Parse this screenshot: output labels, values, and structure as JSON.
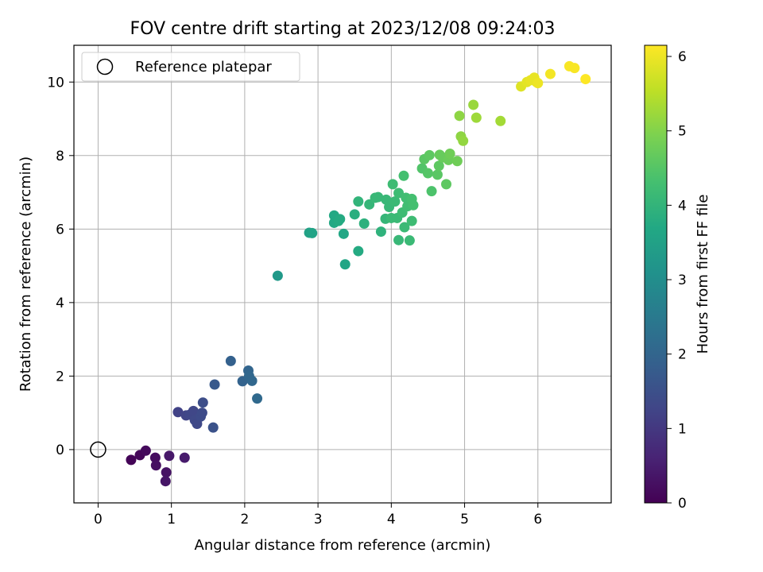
{
  "chart_data": {
    "type": "scatter",
    "title": "FOV centre drift starting at 2023/12/08 09:24:03",
    "xlabel": "Angular distance from reference (arcmin)",
    "ylabel": "Rotation from reference (arcmin)",
    "xlim": [
      -0.33,
      7.0
    ],
    "ylim": [
      -1.45,
      11.0
    ],
    "xticks": [
      0,
      1,
      2,
      3,
      4,
      5,
      6
    ],
    "yticks": [
      0,
      2,
      4,
      6,
      8,
      10
    ],
    "grid": true,
    "legend": {
      "position": "top-left",
      "label": "Reference platepar"
    },
    "reference_point": {
      "x": 0,
      "y": 0
    },
    "colorbar": {
      "label": "Hours from first FF file",
      "colormap": "viridis",
      "range": [
        0,
        6.15
      ],
      "ticks": [
        0,
        1,
        2,
        3,
        4,
        5,
        6
      ]
    },
    "series": [
      {
        "color_variable": "hours",
        "points": [
          {
            "x": 0.45,
            "y": -0.28,
            "hours": 0.05
          },
          {
            "x": 0.57,
            "y": -0.15,
            "hours": 0.1
          },
          {
            "x": 0.65,
            "y": -0.03,
            "hours": 0.15
          },
          {
            "x": 0.78,
            "y": -0.22,
            "hours": 0.2
          },
          {
            "x": 0.79,
            "y": -0.43,
            "hours": 0.25
          },
          {
            "x": 0.93,
            "y": -0.62,
            "hours": 0.3
          },
          {
            "x": 0.92,
            "y": -0.86,
            "hours": 0.35
          },
          {
            "x": 0.97,
            "y": -0.17,
            "hours": 0.4
          },
          {
            "x": 1.18,
            "y": -0.22,
            "hours": 0.45
          },
          {
            "x": 1.09,
            "y": 1.02,
            "hours": 1.2
          },
          {
            "x": 1.2,
            "y": 0.93,
            "hours": 1.25
          },
          {
            "x": 1.25,
            "y": 0.95,
            "hours": 1.3
          },
          {
            "x": 1.3,
            "y": 1.05,
            "hours": 1.3
          },
          {
            "x": 1.32,
            "y": 0.8,
            "hours": 1.35
          },
          {
            "x": 1.35,
            "y": 0.7,
            "hours": 1.35
          },
          {
            "x": 1.4,
            "y": 0.9,
            "hours": 1.4
          },
          {
            "x": 1.42,
            "y": 1.0,
            "hours": 1.4
          },
          {
            "x": 1.43,
            "y": 1.28,
            "hours": 1.45
          },
          {
            "x": 1.57,
            "y": 0.6,
            "hours": 1.55
          },
          {
            "x": 1.59,
            "y": 1.77,
            "hours": 1.7
          },
          {
            "x": 1.81,
            "y": 2.41,
            "hours": 1.9
          },
          {
            "x": 1.97,
            "y": 1.86,
            "hours": 1.95
          },
          {
            "x": 2.05,
            "y": 2.15,
            "hours": 2.0
          },
          {
            "x": 2.06,
            "y": 2.0,
            "hours": 2.05
          },
          {
            "x": 2.1,
            "y": 1.87,
            "hours": 2.05
          },
          {
            "x": 2.17,
            "y": 1.39,
            "hours": 2.1
          },
          {
            "x": 2.45,
            "y": 4.73,
            "hours": 3.3
          },
          {
            "x": 2.88,
            "y": 5.9,
            "hours": 3.5
          },
          {
            "x": 2.92,
            "y": 5.89,
            "hours": 3.55
          },
          {
            "x": 3.22,
            "y": 6.37,
            "hours": 3.7
          },
          {
            "x": 3.22,
            "y": 6.17,
            "hours": 3.7
          },
          {
            "x": 3.28,
            "y": 6.22,
            "hours": 3.75
          },
          {
            "x": 3.3,
            "y": 6.27,
            "hours": 3.75
          },
          {
            "x": 3.35,
            "y": 5.87,
            "hours": 3.65
          },
          {
            "x": 3.37,
            "y": 5.04,
            "hours": 3.6
          },
          {
            "x": 3.5,
            "y": 6.4,
            "hours": 3.85
          },
          {
            "x": 3.55,
            "y": 5.4,
            "hours": 3.75
          },
          {
            "x": 3.55,
            "y": 6.75,
            "hours": 4.0
          },
          {
            "x": 3.63,
            "y": 6.15,
            "hours": 3.9
          },
          {
            "x": 3.7,
            "y": 6.67,
            "hours": 4.05
          },
          {
            "x": 3.78,
            "y": 6.85,
            "hours": 4.1
          },
          {
            "x": 3.82,
            "y": 6.87,
            "hours": 4.1
          },
          {
            "x": 3.86,
            "y": 5.93,
            "hours": 3.95
          },
          {
            "x": 3.92,
            "y": 6.28,
            "hours": 4.05
          },
          {
            "x": 3.93,
            "y": 6.8,
            "hours": 4.1
          },
          {
            "x": 3.97,
            "y": 6.6,
            "hours": 4.1
          },
          {
            "x": 4.0,
            "y": 6.3,
            "hours": 4.15
          },
          {
            "x": 4.02,
            "y": 7.22,
            "hours": 4.2
          },
          {
            "x": 4.05,
            "y": 6.75,
            "hours": 4.15
          },
          {
            "x": 4.08,
            "y": 6.3,
            "hours": 4.15
          },
          {
            "x": 4.1,
            "y": 5.7,
            "hours": 4.1
          },
          {
            "x": 4.1,
            "y": 6.98,
            "hours": 4.2
          },
          {
            "x": 4.15,
            "y": 6.45,
            "hours": 4.2
          },
          {
            "x": 4.17,
            "y": 7.45,
            "hours": 4.3
          },
          {
            "x": 4.18,
            "y": 6.05,
            "hours": 4.15
          },
          {
            "x": 4.2,
            "y": 6.85,
            "hours": 4.25
          },
          {
            "x": 4.22,
            "y": 6.62,
            "hours": 4.25
          },
          {
            "x": 4.25,
            "y": 5.69,
            "hours": 4.15
          },
          {
            "x": 4.28,
            "y": 6.22,
            "hours": 4.2
          },
          {
            "x": 4.28,
            "y": 6.82,
            "hours": 4.3
          },
          {
            "x": 4.3,
            "y": 6.65,
            "hours": 4.3
          },
          {
            "x": 4.42,
            "y": 7.65,
            "hours": 4.45
          },
          {
            "x": 4.45,
            "y": 7.9,
            "hours": 4.55
          },
          {
            "x": 4.5,
            "y": 7.52,
            "hours": 4.5
          },
          {
            "x": 4.52,
            "y": 8.01,
            "hours": 4.6
          },
          {
            "x": 4.55,
            "y": 7.03,
            "hours": 4.4
          },
          {
            "x": 4.63,
            "y": 7.48,
            "hours": 4.55
          },
          {
            "x": 4.65,
            "y": 7.72,
            "hours": 4.6
          },
          {
            "x": 4.66,
            "y": 8.02,
            "hours": 4.7
          },
          {
            "x": 4.7,
            "y": 7.95,
            "hours": 4.7
          },
          {
            "x": 4.75,
            "y": 7.22,
            "hours": 4.6
          },
          {
            "x": 4.78,
            "y": 7.88,
            "hours": 4.75
          },
          {
            "x": 4.8,
            "y": 8.05,
            "hours": 4.8
          },
          {
            "x": 4.9,
            "y": 7.85,
            "hours": 4.8
          },
          {
            "x": 4.93,
            "y": 9.08,
            "hours": 5.1
          },
          {
            "x": 4.95,
            "y": 8.52,
            "hours": 5.1
          },
          {
            "x": 4.98,
            "y": 8.4,
            "hours": 5.15
          },
          {
            "x": 5.12,
            "y": 9.38,
            "hours": 5.2
          },
          {
            "x": 5.16,
            "y": 9.03,
            "hours": 5.25
          },
          {
            "x": 5.49,
            "y": 8.94,
            "hours": 5.3
          },
          {
            "x": 5.77,
            "y": 9.88,
            "hours": 5.85
          },
          {
            "x": 5.85,
            "y": 10.0,
            "hours": 5.9
          },
          {
            "x": 5.9,
            "y": 10.05,
            "hours": 5.95
          },
          {
            "x": 5.95,
            "y": 10.12,
            "hours": 5.95
          },
          {
            "x": 5.98,
            "y": 10.0,
            "hours": 5.95
          },
          {
            "x": 6.0,
            "y": 9.97,
            "hours": 6.0
          },
          {
            "x": 6.17,
            "y": 10.22,
            "hours": 6.05
          },
          {
            "x": 6.43,
            "y": 10.43,
            "hours": 6.1
          },
          {
            "x": 6.5,
            "y": 10.38,
            "hours": 6.1
          },
          {
            "x": 6.65,
            "y": 10.08,
            "hours": 6.15
          }
        ]
      }
    ]
  }
}
